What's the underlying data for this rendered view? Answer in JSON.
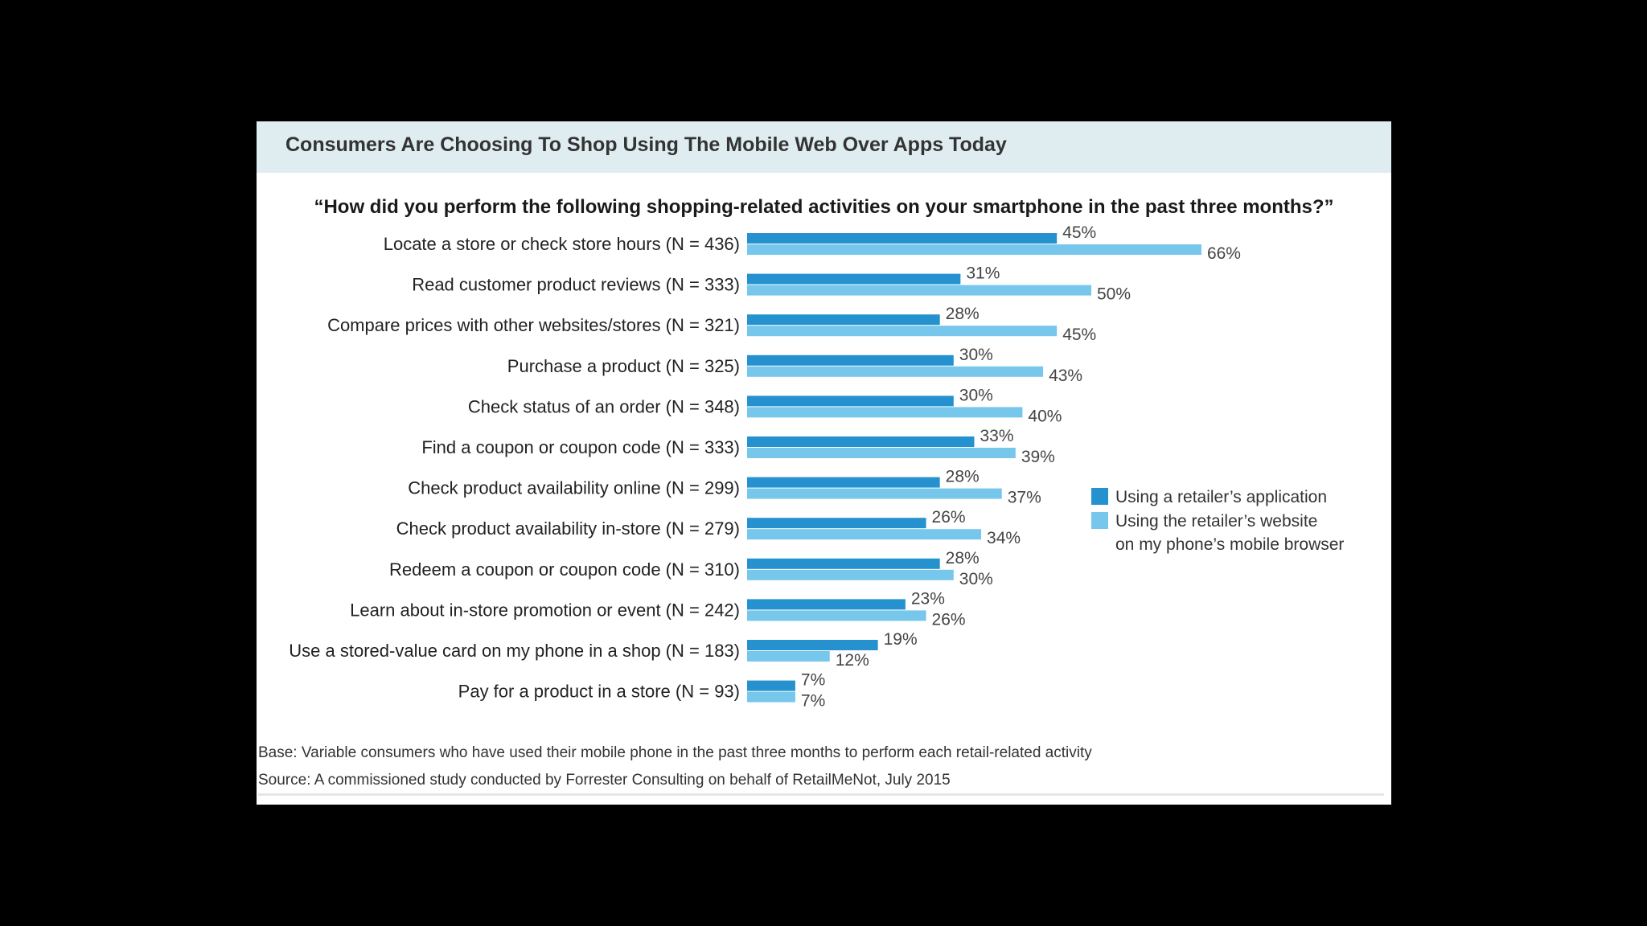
{
  "header": {
    "title": "Consumers Are Choosing To Shop Using The Mobile Web Over Apps Today"
  },
  "chart_data": {
    "type": "bar",
    "orientation": "horizontal",
    "title": "“How did you perform the following shopping-related activities on your smartphone in the past three months?”",
    "categories": [
      "Locate a store or check store hours (N = 436)",
      "Read customer product reviews (N = 333)",
      "Compare prices with other websites/stores (N = 321)",
      "Purchase a product (N = 325)",
      "Check status of an order (N = 348)",
      "Find a coupon or coupon code (N = 333)",
      "Check product availability online (N = 299)",
      "Check product availability in-store (N = 279)",
      "Redeem a coupon or coupon code (N = 310)",
      "Learn about in-store promotion or event (N = 242)",
      "Use a stored-value card on my phone in a shop (N = 183)",
      "Pay for a product in a store (N = 93)"
    ],
    "series": [
      {
        "name": "Using a retailer’s application",
        "color": "#2592cf",
        "values": [
          45,
          31,
          28,
          30,
          30,
          33,
          28,
          26,
          28,
          23,
          19,
          7
        ],
        "labels": [
          "45%",
          "31%",
          "28%",
          "30%",
          "30%",
          "33%",
          "28%",
          "26%",
          "28%",
          "23%",
          "19%",
          "7%"
        ]
      },
      {
        "name_lines": [
          "Using the retailer’s website",
          "on my phone’s mobile browser"
        ],
        "color": "#77c7ec",
        "values": [
          66,
          50,
          45,
          43,
          40,
          39,
          37,
          34,
          30,
          26,
          12,
          7
        ],
        "labels": [
          "66%",
          "50%",
          "45%",
          "43%",
          "40%",
          "39%",
          "37%",
          "34%",
          "30%",
          "26%",
          "12%",
          "7%"
        ]
      }
    ],
    "xlim": [
      0,
      100
    ],
    "grid": false,
    "legend_position": "right"
  },
  "notes": {
    "base": "Base: Variable consumers who have used their mobile phone in the past three months to perform each retail-related activity",
    "source": "Source: A commissioned study conducted by Forrester Consulting on behalf of RetailMeNot, July 2015"
  }
}
